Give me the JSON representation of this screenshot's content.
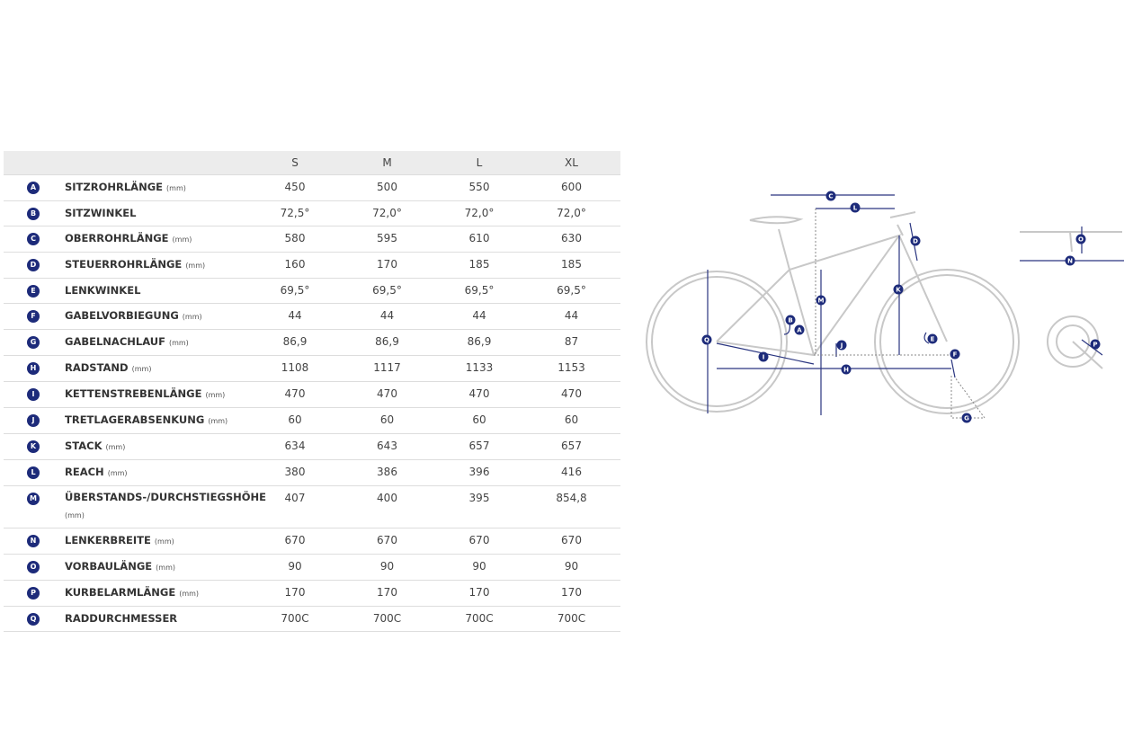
{
  "table": {
    "columns": [
      "S",
      "M",
      "L",
      "XL"
    ],
    "rows": [
      {
        "letter": "A",
        "name": "SITZROHRLÄNGE",
        "unit": "(mm)",
        "values": [
          "450",
          "500",
          "550",
          "600"
        ]
      },
      {
        "letter": "B",
        "name": "SITZWINKEL",
        "values": [
          "72,5°",
          "72,0°",
          "72,0°",
          "72,0°"
        ]
      },
      {
        "letter": "C",
        "name": "OBERROHRLÄNGE",
        "unit": "(mm)",
        "values": [
          "580",
          "595",
          "610",
          "630"
        ]
      },
      {
        "letter": "D",
        "name": "STEUERROHRLÄNGE",
        "unit": "(mm)",
        "values": [
          "160",
          "170",
          "185",
          "185"
        ]
      },
      {
        "letter": "E",
        "name": "LENKWINKEL",
        "values": [
          "69,5°",
          "69,5°",
          "69,5°",
          "69,5°"
        ]
      },
      {
        "letter": "F",
        "name": "GABELVORBIEGUNG",
        "unit": "(mm)",
        "values": [
          "44",
          "44",
          "44",
          "44"
        ]
      },
      {
        "letter": "G",
        "name": "GABELNACHLAUF",
        "unit": "(mm)",
        "values": [
          "86,9",
          "86,9",
          "86,9",
          "87"
        ]
      },
      {
        "letter": "H",
        "name": "RADSTAND",
        "unit": "(mm)",
        "values": [
          "1108",
          "1117",
          "1133",
          "1153"
        ]
      },
      {
        "letter": "I",
        "name": "KETTENSTREBENLÄNGE",
        "unit": "(mm)",
        "values": [
          "470",
          "470",
          "470",
          "470"
        ]
      },
      {
        "letter": "J",
        "name": "TRETLAGERABSENKUNG",
        "unit": "(mm)",
        "values": [
          "60",
          "60",
          "60",
          "60"
        ]
      },
      {
        "letter": "K",
        "name": "STACK",
        "unit": "(mm)",
        "values": [
          "634",
          "643",
          "657",
          "657"
        ]
      },
      {
        "letter": "L",
        "name": "REACH",
        "unit": "(mm)",
        "values": [
          "380",
          "386",
          "396",
          "416"
        ]
      },
      {
        "letter": "M",
        "name": "ÜBERSTANDS-/DURCHSTIEGSHÖHE",
        "unit": "(mm)",
        "values": [
          "407",
          "400",
          "395",
          "854,8"
        ]
      },
      {
        "letter": "N",
        "name": "LENKERBREITE",
        "unit": "(mm)",
        "values": [
          "670",
          "670",
          "670",
          "670"
        ]
      },
      {
        "letter": "O",
        "name": "VORBAULÄNGE",
        "unit": "(mm)",
        "values": [
          "90",
          "90",
          "90",
          "90"
        ]
      },
      {
        "letter": "P",
        "name": "KURBELARMLÄNGE",
        "unit": "(mm)",
        "values": [
          "170",
          "170",
          "170",
          "170"
        ]
      },
      {
        "letter": "Q",
        "name": "RADDURCHMESSER",
        "values": [
          "700C",
          "700C",
          "700C",
          "700C"
        ]
      }
    ]
  },
  "diagram": {
    "markers": [
      "A",
      "B",
      "C",
      "D",
      "E",
      "F",
      "G",
      "H",
      "I",
      "J",
      "K",
      "L",
      "M",
      "N",
      "O",
      "P",
      "Q"
    ]
  }
}
